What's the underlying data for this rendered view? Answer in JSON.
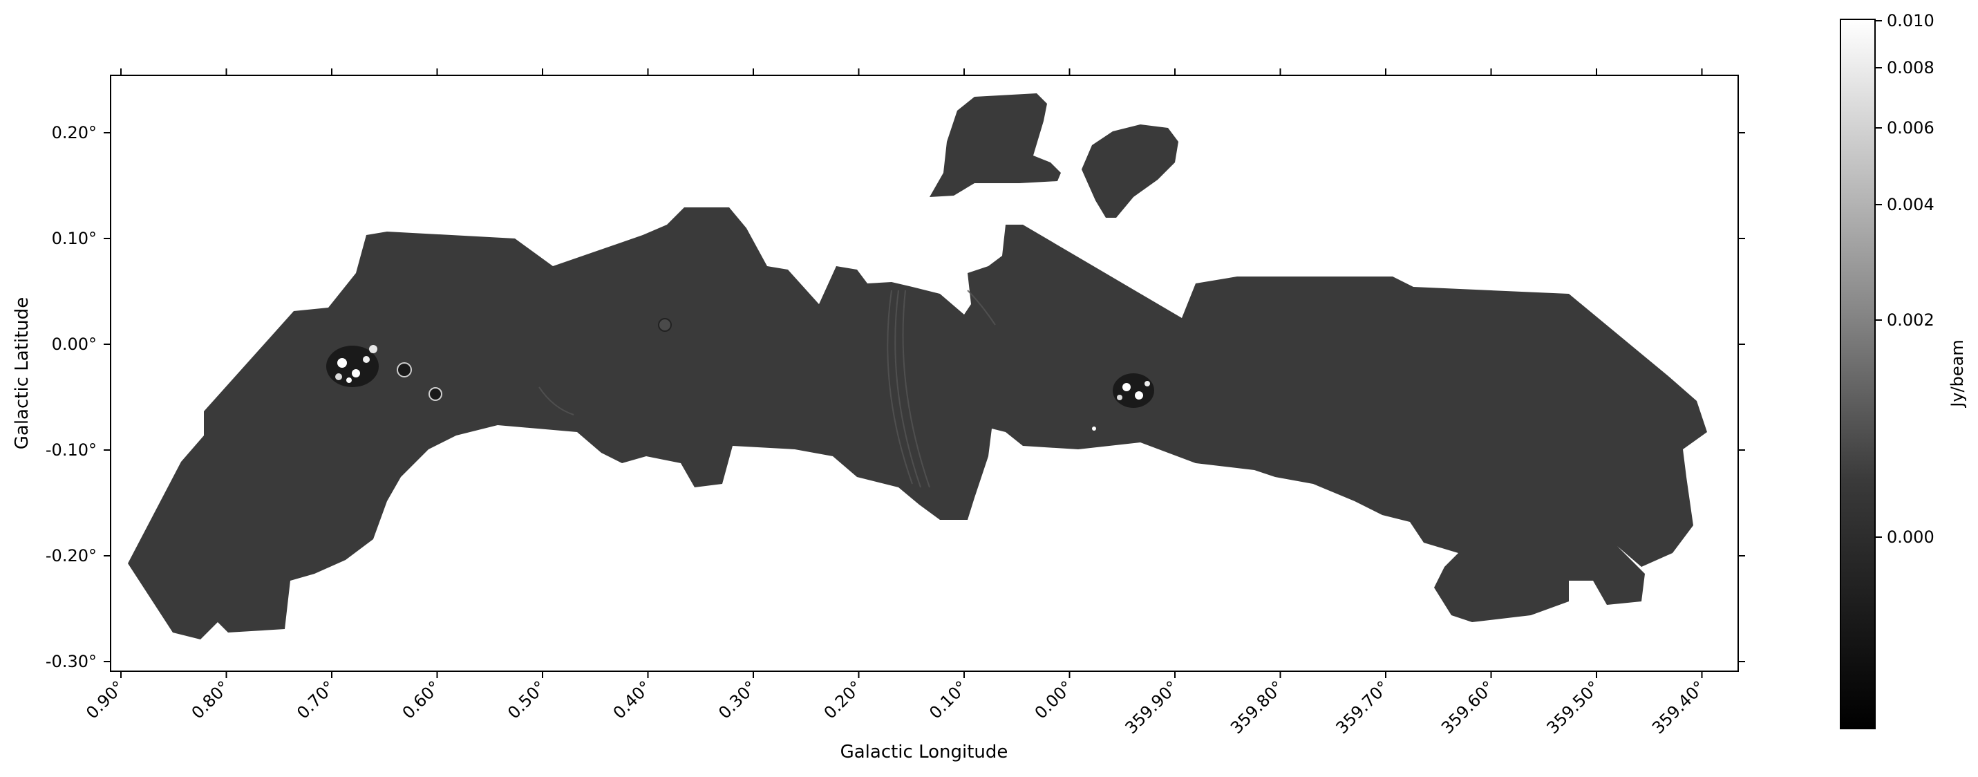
{
  "figure": {
    "xlabel": "Galactic Longitude",
    "ylabel": "Galactic Latitude",
    "x_ticks": [
      "0.90°",
      "0.80°",
      "0.70°",
      "0.60°",
      "0.50°",
      "0.40°",
      "0.30°",
      "0.20°",
      "0.10°",
      "0.00°",
      "359.90°",
      "359.80°",
      "359.70°",
      "359.60°",
      "359.50°",
      "359.40°"
    ],
    "y_ticks": [
      "0.20°",
      "0.10°",
      "0.00°",
      "-0.10°",
      "-0.20°",
      "-0.30°"
    ]
  },
  "colorbar": {
    "label": "Jy/beam",
    "ticks": [
      "0.010",
      "0.008",
      "0.006",
      "0.004",
      "0.002",
      "0.000"
    ],
    "colormap": [
      "#000000",
      "#ffffff"
    ]
  },
  "image": {
    "background": "#ffffff",
    "mosaic_color": "#3a3a3a",
    "bright_sources": [
      "compact source cluster near l=0.67°",
      "compact sources near l=359.94°"
    ]
  }
}
